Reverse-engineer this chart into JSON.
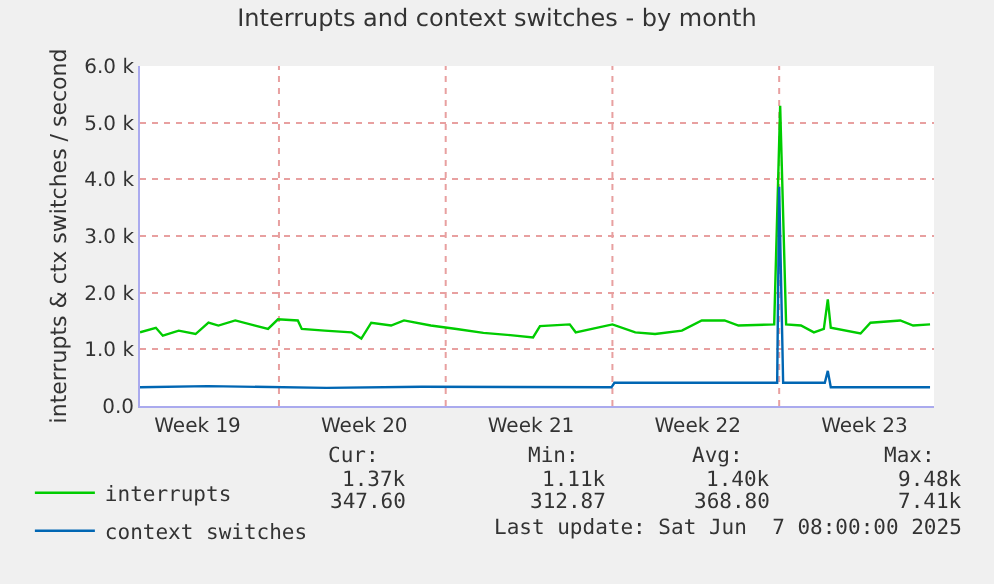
{
  "chart_data": {
    "type": "line",
    "title": "Interrupts and context switches - by month",
    "ylabel": "interrupts & ctx switches / second",
    "xlim": [
      "2025-05-06T04:00",
      "2025-06-08T12:00"
    ],
    "xticks": [
      {
        "value": "2025-05-08T14:00",
        "label": "Week 19"
      },
      {
        "value": "2025-05-12T00:00",
        "label": null
      },
      {
        "value": "2025-05-15T14:00",
        "label": "Week 20"
      },
      {
        "value": "2025-05-19T00:00",
        "label": null
      },
      {
        "value": "2025-05-22T14:00",
        "label": "Week 21"
      },
      {
        "value": "2025-05-26T00:00",
        "label": null
      },
      {
        "value": "2025-05-29T14:00",
        "label": "Week 22"
      },
      {
        "value": "2025-06-02T00:00",
        "label": null
      },
      {
        "value": "2025-06-05T14:00",
        "label": "Week 23"
      }
    ],
    "ylim": [
      0,
      6000
    ],
    "yticks": [
      {
        "value": 0,
        "label": "0.0"
      },
      {
        "value": 1000,
        "label": "1.0 k"
      },
      {
        "value": 2000,
        "label": "2.0 k"
      },
      {
        "value": 3000,
        "label": "3.0 k"
      },
      {
        "value": 4000,
        "label": "4.0 k"
      },
      {
        "value": 5000,
        "label": "5.0 k"
      },
      {
        "value": 6000,
        "label": "6.0 k"
      }
    ],
    "grid": true,
    "legend": "bottom",
    "marker": "none",
    "line_style": "solid",
    "series": [
      {
        "name": "interrupts",
        "color": "#00cc00",
        "x": [
          "2025-05-06T04:00",
          "2025-05-06T20:00",
          "2025-05-07T03:00",
          "2025-05-07T19:00",
          "2025-05-08T12:00",
          "2025-05-09T01:00",
          "2025-05-09T11:00",
          "2025-05-10T04:00",
          "2025-05-11T00:00",
          "2025-05-11T13:00",
          "2025-05-11T23:00",
          "2025-05-12T19:00",
          "2025-05-12T23:00",
          "2025-05-13T22:00",
          "2025-05-15T01:00",
          "2025-05-15T11:00",
          "2025-05-15T21:00",
          "2025-05-16T17:00",
          "2025-05-17T06:00",
          "2025-05-18T09:00",
          "2025-05-19T11:00",
          "2025-05-20T14:00",
          "2025-05-21T17:00",
          "2025-05-22T16:00",
          "2025-05-22T23:00",
          "2025-05-24T05:00",
          "2025-05-24T11:00",
          "2025-05-26T00:00",
          "2025-05-26T23:00",
          "2025-05-27T19:00",
          "2025-05-28T22:00",
          "2025-05-29T18:00",
          "2025-05-30T17:00",
          "2025-05-31T07:00",
          "2025-06-01T19:00",
          "2025-06-02T01:00",
          "2025-06-02T07:00",
          "2025-06-02T22:00",
          "2025-06-03T11:00",
          "2025-06-03T21:00",
          "2025-06-04T01:00",
          "2025-06-04T04:00",
          "2025-06-05T10:00",
          "2025-06-05T20:00",
          "2025-06-07T02:00",
          "2025-06-07T15:00",
          "2025-06-08T08:00"
        ],
        "values": [
          1300,
          1380,
          1240,
          1330,
          1270,
          1470,
          1420,
          1510,
          1420,
          1360,
          1530,
          1510,
          1360,
          1330,
          1300,
          1190,
          1470,
          1420,
          1510,
          1420,
          1360,
          1290,
          1250,
          1210,
          1410,
          1440,
          1300,
          1440,
          1300,
          1270,
          1330,
          1510,
          1510,
          1420,
          1440,
          5300,
          1440,
          1420,
          1300,
          1360,
          1880,
          1380,
          1280,
          1470,
          1510,
          1420,
          1440
        ]
      },
      {
        "name": "context switches",
        "color": "#0066b3",
        "x": [
          "2025-05-06T04:00",
          "2025-05-09T00:00",
          "2025-05-14T00:00",
          "2025-05-18T00:00",
          "2025-05-25T23:00",
          "2025-05-26T02:00",
          "2025-06-01T22:00",
          "2025-06-02T00:00",
          "2025-06-02T04:00",
          "2025-06-03T22:00",
          "2025-06-04T01:00",
          "2025-06-04T04:00",
          "2025-06-08T08:00"
        ],
        "values": [
          330,
          350,
          320,
          340,
          330,
          410,
          410,
          3870,
          410,
          410,
          620,
          330,
          330
        ]
      }
    ],
    "annotations": [
      "Cur:",
      "Min:",
      "Avg:",
      "Max:",
      "1.37k",
      "1.11k",
      "1.40k",
      "9.48k",
      "347.60",
      "312.87",
      "368.80",
      "7.41k",
      "Last update: Sat Jun  7 08:00:00 2025"
    ]
  }
}
